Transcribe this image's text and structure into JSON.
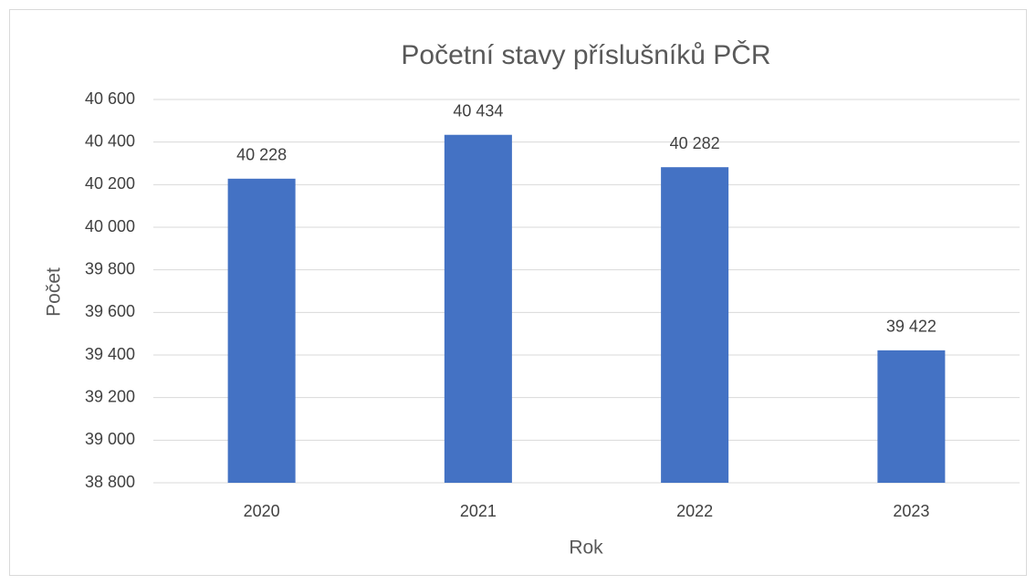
{
  "chart_data": {
    "type": "bar",
    "title": "Početní stavy příslušníků PČR",
    "x_label": "Rok",
    "y_label": "Počet",
    "categories": [
      "2020",
      "2021",
      "2022",
      "2023"
    ],
    "values": [
      40228,
      40434,
      40282,
      39422
    ],
    "value_labels": [
      "40 228",
      "40 434",
      "40 282",
      "39 422"
    ],
    "color": "#4472c4",
    "ylim": [
      38800,
      40600
    ],
    "yticks": [
      {
        "value": 38800,
        "label": "38 800"
      },
      {
        "value": 39000,
        "label": "39 000"
      },
      {
        "value": 39200,
        "label": "39 200"
      },
      {
        "value": 39400,
        "label": "39 400"
      },
      {
        "value": 39600,
        "label": "39 600"
      },
      {
        "value": 39800,
        "label": "39 800"
      },
      {
        "value": 40000,
        "label": "40 000"
      },
      {
        "value": 40200,
        "label": "40 200"
      },
      {
        "value": 40400,
        "label": "40 400"
      },
      {
        "value": 40600,
        "label": "40 600"
      }
    ],
    "grid": true
  }
}
